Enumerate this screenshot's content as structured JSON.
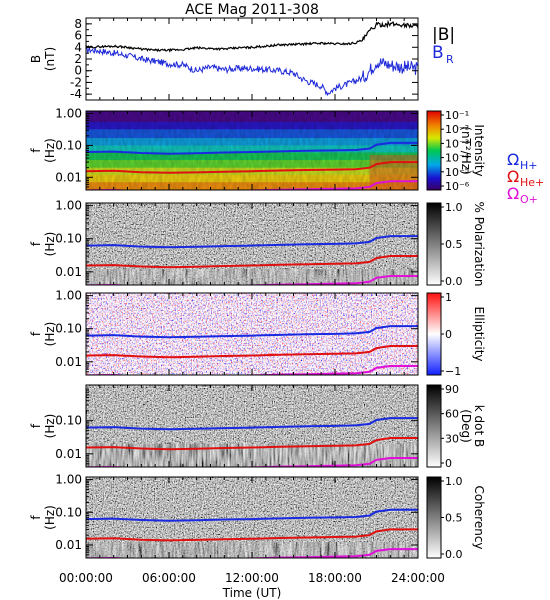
{
  "title": "ACE Mag 2011-308",
  "colors": {
    "btotal": "#000000",
    "br": "#1f2ad8",
    "h_line": "#1a2ae0",
    "he_line": "#e01010",
    "o_line": "#e010d8"
  },
  "chart_data": [
    {
      "type": "line",
      "panel": "magnetic-field",
      "ylabel": "B",
      "yunit": "(nT)",
      "ylim": [
        -5,
        9
      ],
      "yticks": [
        -4,
        -2,
        0,
        2,
        4,
        6,
        8
      ],
      "xlim": [
        0,
        24
      ],
      "legend": [
        "|B|",
        "B"
      ],
      "legend_sub": "R",
      "series": [
        {
          "name": "|B|",
          "x": [
            0,
            1,
            2,
            3,
            4,
            5,
            6,
            7,
            8,
            9,
            10,
            11,
            12,
            13,
            14,
            15,
            16,
            17,
            18,
            19,
            19.5,
            20,
            20.5,
            21,
            22,
            23,
            24
          ],
          "values": [
            4.0,
            4.1,
            4.2,
            4.0,
            3.7,
            3.5,
            3.5,
            3.6,
            3.9,
            3.8,
            3.7,
            3.9,
            4.0,
            4.2,
            4.4,
            4.5,
            4.6,
            4.7,
            4.6,
            4.6,
            4.8,
            5.2,
            6.8,
            7.8,
            8.0,
            7.8,
            7.6
          ]
        },
        {
          "name": "B_R",
          "x": [
            0,
            1,
            2,
            3,
            4,
            5,
            6,
            7,
            8,
            9,
            10,
            11,
            12,
            13,
            14,
            15,
            15.5,
            16,
            17,
            17.5,
            18,
            19,
            20,
            20.5,
            21,
            22,
            23,
            24
          ],
          "values": [
            3.6,
            3.4,
            3.0,
            2.6,
            2.0,
            1.6,
            1.2,
            1.0,
            0.0,
            0.6,
            0.2,
            0.4,
            0.4,
            0.2,
            0.0,
            -0.4,
            -1.2,
            -1.8,
            -2.6,
            -3.8,
            -3.0,
            -2.2,
            -1.2,
            0.0,
            1.6,
            1.0,
            0.6,
            0.4
          ]
        }
      ]
    },
    {
      "type": "heatmap",
      "panel": "power-spectrum",
      "ylabel": "f",
      "yunit": "(Hz)",
      "yscale": "log",
      "ylim": [
        0.004,
        1.2
      ],
      "yticks": [
        "1.00",
        "0.10",
        "0.01"
      ],
      "colorbar_label": "Intensity",
      "colorbar_unit": "(nT²/Hz)",
      "colorbar_ticks": [
        "10⁻¹",
        "10⁻²",
        "10⁻³",
        "10⁻⁴",
        "10⁻⁵",
        "10⁻⁶"
      ]
    },
    {
      "type": "heatmap",
      "panel": "polarization",
      "ylabel": "f",
      "yunit": "(Hz)",
      "yscale": "log",
      "yticks": [
        "1.00",
        "0.10",
        "0.01"
      ],
      "colorbar_label": "% Polarization",
      "colorbar_ticks": [
        "1.0",
        "0.5",
        "0.0"
      ]
    },
    {
      "type": "heatmap",
      "panel": "ellipticity",
      "ylabel": "f",
      "yunit": "(Hz)",
      "yscale": "log",
      "yticks": [
        "1.00",
        "0.10",
        "0.01"
      ],
      "colorbar_label": "Ellipticity",
      "colorbar_ticks": [
        "1",
        "0",
        "−1"
      ]
    },
    {
      "type": "heatmap",
      "panel": "wave-normal-angle",
      "ylabel": "f",
      "yunit": "(Hz)",
      "yscale": "log",
      "yticks": [
        "0.10",
        "0.01"
      ],
      "colorbar_label": "k dot B",
      "colorbar_unit": "(Deg)",
      "colorbar_ticks": [
        "90",
        "60",
        "30",
        "0"
      ]
    },
    {
      "type": "heatmap",
      "panel": "coherency",
      "ylabel": "f",
      "yunit": "(Hz)",
      "yscale": "log",
      "yticks": [
        "1.00",
        "0.10",
        "0.01"
      ],
      "colorbar_label": "Coherency",
      "colorbar_ticks": [
        "1.0",
        "0.5",
        "0.0"
      ]
    }
  ],
  "gyrofrequencies": {
    "labels": [
      "Ω",
      "Ω",
      "Ω"
    ],
    "subscripts": [
      "H+",
      "He+",
      "O+"
    ],
    "x": [
      0,
      2,
      4,
      6,
      8,
      10,
      12,
      14,
      16,
      18,
      19.5,
      20.5,
      21,
      22,
      24
    ],
    "h_plus": [
      0.062,
      0.064,
      0.058,
      0.055,
      0.057,
      0.06,
      0.062,
      0.065,
      0.068,
      0.07,
      0.072,
      0.08,
      0.105,
      0.12,
      0.12
    ],
    "he_plus": [
      0.0155,
      0.016,
      0.0145,
      0.0138,
      0.0143,
      0.015,
      0.0155,
      0.0163,
      0.017,
      0.0175,
      0.018,
      0.02,
      0.026,
      0.03,
      0.03
    ],
    "o_plus": [
      0.0039,
      0.004,
      0.0036,
      0.0035,
      0.0036,
      0.0037,
      0.0039,
      0.0041,
      0.0042,
      0.0044,
      0.0045,
      0.005,
      0.0066,
      0.0075,
      0.0075
    ]
  },
  "x_axis": {
    "label": "Time (UT)",
    "ticks": [
      "00:00:00",
      "06:00:00",
      "12:00:00",
      "18:00:00",
      "24:00:00"
    ],
    "tick_values": [
      0,
      6,
      12,
      18,
      24
    ]
  }
}
